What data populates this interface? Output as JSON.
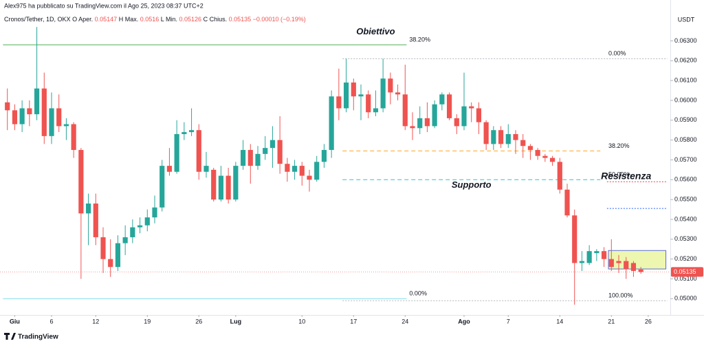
{
  "header": {
    "publisher": "Alex975 ha pubblicato su TradingView.com il Ago 25, 2023 08:37 UTC+2",
    "symbol": "Cronos/Tether, 1D, OKX",
    "ohlc": [
      {
        "key": "O",
        "label": "Aper.",
        "value": 0.05147
      },
      {
        "key": "H",
        "label": "Max.",
        "value": 0.0516
      },
      {
        "key": "L",
        "label": "Min.",
        "value": 0.05126
      },
      {
        "key": "C",
        "label": "Chius.",
        "value": 0.05135
      }
    ],
    "change": "−0.00010 (−0.19%)"
  },
  "footer": "TradingView",
  "chart_data": {
    "type": "candlestick",
    "currency": "USDT",
    "x": [
      0,
      1,
      2,
      3,
      4,
      5,
      6,
      7,
      8,
      9,
      10,
      11,
      12,
      13,
      14,
      15,
      16,
      17,
      18,
      19,
      20,
      21,
      22,
      23,
      24,
      25,
      26,
      27,
      28,
      29,
      30,
      31,
      32,
      33,
      34,
      35,
      36,
      37,
      38,
      39,
      40,
      41,
      42,
      43,
      44,
      45,
      46,
      47,
      48,
      49,
      50,
      51,
      52,
      53,
      54,
      55,
      56,
      57,
      58,
      59,
      60,
      61,
      62,
      63,
      64,
      65,
      66,
      67,
      68,
      69,
      70,
      71,
      72,
      73,
      74,
      75,
      76,
      77,
      78,
      79,
      80,
      81,
      82,
      83,
      84,
      85,
      86
    ],
    "open": [
      0.0599,
      0.0595,
      0.0588,
      0.0596,
      0.0593,
      0.0606,
      0.0582,
      0.0596,
      0.0587,
      0.0588,
      0.0575,
      0.0543,
      0.0548,
      0.0531,
      0.052,
      0.0516,
      0.0528,
      0.0531,
      0.0536,
      0.0537,
      0.0541,
      0.0546,
      0.0567,
      0.0564,
      0.0583,
      0.0584,
      0.0585,
      0.0564,
      0.0565,
      0.055,
      0.0562,
      0.055,
      0.0567,
      0.0575,
      0.0567,
      0.0573,
      0.0576,
      0.058,
      0.0568,
      0.0564,
      0.0567,
      0.0562,
      0.056,
      0.0569,
      0.0575,
      0.0602,
      0.0596,
      0.0609,
      0.0602,
      0.0603,
      0.0594,
      0.0596,
      0.0611,
      0.0604,
      0.0603,
      0.0587,
      0.0586,
      0.0591,
      0.0587,
      0.0598,
      0.0603,
      0.0591,
      0.0587,
      0.0597,
      0.0596,
      0.0589,
      0.0578,
      0.0585,
      0.0578,
      0.0583,
      0.058,
      0.0577,
      0.0575,
      0.0572,
      0.0571,
      0.0569,
      0.0555,
      0.0542,
      0.0518,
      0.0518,
      0.0523,
      0.0524,
      0.052,
      0.0519,
      0.0519,
      0.0518,
      0.05147
    ],
    "high": [
      0.0606,
      0.0598,
      0.06,
      0.06,
      0.0637,
      0.0614,
      0.0604,
      0.0603,
      0.0591,
      0.0589,
      0.0576,
      0.0553,
      0.0553,
      0.0536,
      0.053,
      0.0532,
      0.0537,
      0.054,
      0.0541,
      0.0545,
      0.0552,
      0.057,
      0.0576,
      0.059,
      0.0589,
      0.0596,
      0.0588,
      0.0574,
      0.0566,
      0.0567,
      0.0566,
      0.0569,
      0.058,
      0.0578,
      0.0577,
      0.0582,
      0.0587,
      0.0592,
      0.0571,
      0.057,
      0.0569,
      0.0565,
      0.0572,
      0.0578,
      0.0605,
      0.0616,
      0.0621,
      0.0611,
      0.0608,
      0.0605,
      0.0605,
      0.0621,
      0.0614,
      0.0608,
      0.0618,
      0.0594,
      0.0597,
      0.0599,
      0.06,
      0.0604,
      0.0604,
      0.0593,
      0.0614,
      0.0599,
      0.0599,
      0.059,
      0.0587,
      0.0587,
      0.0588,
      0.0585,
      0.0583,
      0.0578,
      0.0576,
      0.0573,
      0.0572,
      0.0571,
      0.0558,
      0.0545,
      0.0524,
      0.0527,
      0.0525,
      0.0526,
      0.053,
      0.0522,
      0.0521,
      0.0519,
      0.0516
    ],
    "low": [
      0.0585,
      0.0585,
      0.0584,
      0.0587,
      0.059,
      0.0578,
      0.0578,
      0.0584,
      0.058,
      0.0571,
      0.051,
      0.0527,
      0.0527,
      0.0513,
      0.0511,
      0.0514,
      0.0522,
      0.0528,
      0.0533,
      0.0534,
      0.0538,
      0.0544,
      0.0562,
      0.0563,
      0.058,
      0.0582,
      0.056,
      0.0561,
      0.0549,
      0.0549,
      0.0548,
      0.0549,
      0.0565,
      0.0558,
      0.0565,
      0.057,
      0.0566,
      0.0563,
      0.0559,
      0.056,
      0.0557,
      0.0554,
      0.0559,
      0.0566,
      0.0571,
      0.059,
      0.0594,
      0.0595,
      0.059,
      0.0591,
      0.0592,
      0.0594,
      0.0598,
      0.06,
      0.0585,
      0.058,
      0.0583,
      0.0584,
      0.0586,
      0.0595,
      0.059,
      0.0583,
      0.0585,
      0.0589,
      0.0583,
      0.0575,
      0.0575,
      0.0576,
      0.0576,
      0.0573,
      0.0571,
      0.057,
      0.057,
      0.0569,
      0.0567,
      0.0553,
      0.0541,
      0.0497,
      0.0514,
      0.0517,
      0.0519,
      0.0516,
      0.0514,
      0.0513,
      0.051,
      0.0511,
      0.05126
    ],
    "close": [
      0.0595,
      0.0588,
      0.0596,
      0.0593,
      0.0606,
      0.0582,
      0.0596,
      0.0587,
      0.0588,
      0.0575,
      0.0543,
      0.0548,
      0.0531,
      0.052,
      0.0516,
      0.0528,
      0.0531,
      0.0536,
      0.0537,
      0.0541,
      0.0546,
      0.0567,
      0.0564,
      0.0583,
      0.0584,
      0.0585,
      0.0564,
      0.0567,
      0.055,
      0.0562,
      0.055,
      0.0567,
      0.0575,
      0.0567,
      0.0573,
      0.0576,
      0.058,
      0.0568,
      0.0564,
      0.0567,
      0.0562,
      0.056,
      0.0569,
      0.0575,
      0.0602,
      0.0596,
      0.0609,
      0.0602,
      0.0603,
      0.0594,
      0.0596,
      0.0611,
      0.0604,
      0.0603,
      0.0587,
      0.0586,
      0.0591,
      0.0587,
      0.0598,
      0.0603,
      0.0591,
      0.0587,
      0.0597,
      0.0596,
      0.0589,
      0.0578,
      0.0585,
      0.0578,
      0.0583,
      0.058,
      0.0577,
      0.0575,
      0.0572,
      0.0571,
      0.0569,
      0.0555,
      0.0542,
      0.0518,
      0.0519,
      0.0524,
      0.0524,
      0.052,
      0.0516,
      0.0518,
      0.0515,
      0.0514,
      0.05135
    ],
    "up_color": "#26a69a",
    "down_color": "#ef5350",
    "xlim": [
      -1,
      90
    ],
    "xticks": [
      {
        "value": 1,
        "label": "Giu"
      },
      6,
      12,
      19,
      26,
      {
        "value": 31,
        "label": "Lug"
      },
      {
        "value": 40,
        "label": "10"
      },
      {
        "value": 47,
        "label": "17"
      },
      {
        "value": 54,
        "label": "24"
      },
      {
        "value": 62,
        "label": "Ago"
      },
      {
        "value": 68,
        "label": "7"
      },
      {
        "value": 75,
        "label": "14"
      },
      {
        "value": 82,
        "label": "21"
      },
      {
        "value": 87,
        "label": "26"
      }
    ],
    "ylim": [
      0.04918,
      0.06402
    ],
    "yticks": [
      {
        "value": 0.05,
        "label": "0.05000"
      },
      {
        "value": 0.051,
        "label": "0.05100"
      },
      {
        "value": 0.052,
        "label": "0.05200"
      },
      {
        "value": 0.053,
        "label": "0.05300"
      },
      {
        "value": 0.054,
        "label": "0.05400"
      },
      {
        "value": 0.055,
        "label": "0.05500"
      },
      {
        "value": 0.056,
        "label": "0.05600"
      },
      {
        "value": 0.057,
        "label": "0.05700"
      },
      {
        "value": 0.058,
        "label": "0.05800"
      },
      {
        "value": 0.059,
        "label": "0.05900"
      },
      {
        "value": 0.06,
        "label": "0.06000"
      },
      {
        "value": 0.061,
        "label": "0.06100"
      },
      {
        "value": 0.062,
        "label": "0.06200"
      },
      {
        "value": 0.063,
        "label": "0.06300"
      }
    ],
    "last_price": {
      "value": 0.05135,
      "label": "0.05135"
    },
    "levels": [
      {
        "value": 0.0628,
        "label": "38.20%",
        "color": "#4caf50",
        "style": "solid",
        "span": "left"
      },
      {
        "value": 0.05,
        "label": "0.00%",
        "color": "#80deea",
        "style": "solid",
        "span": "left"
      },
      {
        "value": 0.0621,
        "label": "0.00%",
        "color": "#b2b5be",
        "style": "dotted",
        "span": "right"
      },
      {
        "value": 0.05745,
        "label": "38.20%",
        "color": "#ffa726",
        "style": "dashed",
        "span": "mid"
      },
      {
        "value": 0.056,
        "label": "50.00%",
        "color": "#26c6da",
        "style": "dashed",
        "span": "mid"
      },
      {
        "value": 0.0499,
        "label": "100.00%",
        "color": "#b2b5be",
        "style": "dotted",
        "span": "right"
      },
      {
        "value": 0.0559,
        "color": "#f23645",
        "style": "dotted",
        "span": "end"
      },
      {
        "value": 0.05455,
        "color": "#2962ff",
        "style": "dotted",
        "span": "end"
      }
    ],
    "zone": {
      "top": 0.05243,
      "bottom": 0.0515,
      "color": "#eef7b0"
    },
    "annotations": [
      {
        "text": "Obiettivo",
        "color": "#26c6da",
        "value": 0.06345,
        "x": 50
      },
      {
        "text": "Supporto",
        "color": "#26c6da",
        "value": 0.05572,
        "x": 63
      },
      {
        "text": "Resistenza",
        "color": "#f23645",
        "value": 0.05615,
        "x": 84
      }
    ]
  }
}
